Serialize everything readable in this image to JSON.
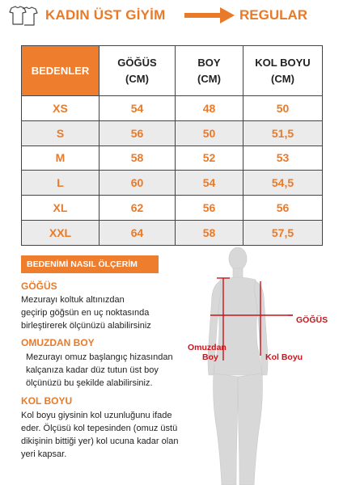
{
  "header": {
    "title": "KADIN ÜST GİYİM",
    "fit": "REGULAR",
    "shirt_icon": "shirt-outline-icon",
    "arrow_icon": "arrow-right-icon",
    "accent_color": "#e87a2a"
  },
  "table": {
    "headers": {
      "size": "BEDENLER",
      "chest_1": "GÖĞÜS",
      "chest_2": "(CM)",
      "length_1": "BOY",
      "length_2": "(CM)",
      "sleeve_1": "KOL BOYU",
      "sleeve_2": "(CM)"
    },
    "rows": [
      {
        "size": "XS",
        "chest": "54",
        "length": "48",
        "sleeve": "50"
      },
      {
        "size": "S",
        "chest": "56",
        "length": "50",
        "sleeve": "51,5"
      },
      {
        "size": "M",
        "chest": "58",
        "length": "52",
        "sleeve": "53"
      },
      {
        "size": "L",
        "chest": "60",
        "length": "54",
        "sleeve": "54,5"
      },
      {
        "size": "XL",
        "chest": "62",
        "length": "56",
        "sleeve": "56"
      },
      {
        "size": "XXL",
        "chest": "64",
        "length": "58",
        "sleeve": "57,5"
      }
    ],
    "shade_color": "#ebebeb",
    "header_color": "#ee7d2e"
  },
  "guide": {
    "heading": "BEDENİMİ NASIL ÖLÇERİM",
    "sections": [
      {
        "title": "GÖĞÜS",
        "lines": [
          "Mezurayı koltuk altınızdan",
          "geçirip göğsün en uç noktasında",
          "birleştirerek ölçünüzü alabilirsiniz"
        ]
      },
      {
        "title": "OMUZDAN BOY",
        "lines": [
          "Mezurayı omuz başlangıç hizasından",
          "kalçanıza kadar düz tutun üst boy",
          "ölçünüzü bu şekilde alabilirsiniz."
        ]
      },
      {
        "title": "KOL BOYU",
        "lines": [
          "Kol boyu giysinin kol uzunluğunu ifade",
          "eder. Ölçüsü kol tepesinden (omuz üstü",
          "dikişinin bittiği yer) kol ucuna kadar olan",
          "yeri kapsar."
        ]
      }
    ]
  },
  "figure": {
    "label_chest": "GÖĞÜS",
    "label_shoulder_1": "Omuzdan",
    "label_shoulder_2": "Boy",
    "label_sleeve": "Kol Boyu",
    "line_color": "#c4161c",
    "body_color": "#d8d8d8"
  }
}
